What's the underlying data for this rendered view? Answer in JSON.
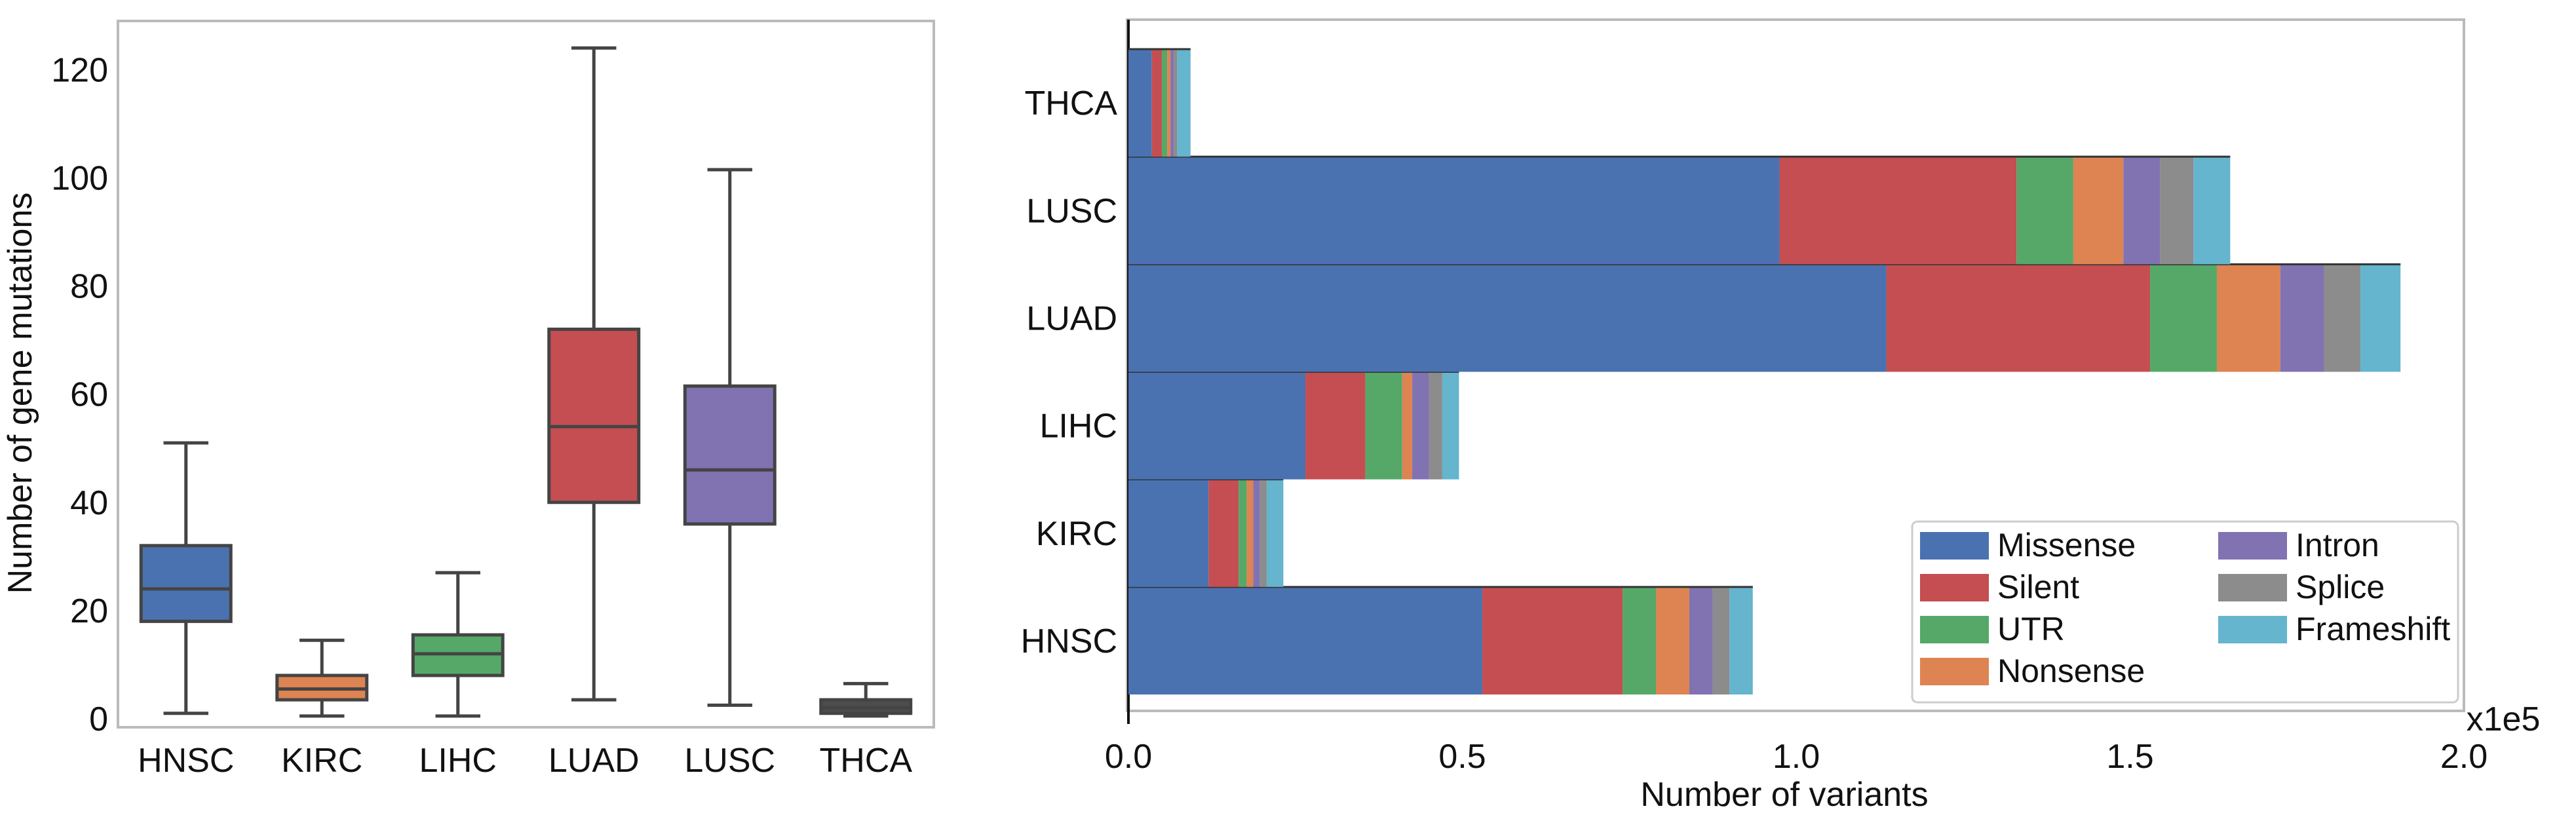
{
  "colors": {
    "HNSC": "#4a72b0",
    "KIRC": "#dd8452",
    "LIHC": "#55a868",
    "LUAD": "#c44e52",
    "LUSC": "#8172b2",
    "THCA": "#4d4d4d",
    "whisker": "#444444",
    "frame": "#bbbbbb",
    "grid": "#cccccc"
  },
  "chart_data": [
    {
      "type": "box",
      "title": "",
      "xlabel": "",
      "ylabel": "Number of gene mutations",
      "ylim": [
        0,
        125
      ],
      "yticks": [
        0,
        20,
        40,
        60,
        80,
        100,
        120
      ],
      "categories": [
        "HNSC",
        "KIRC",
        "LIHC",
        "LUAD",
        "LUSC",
        "THCA"
      ],
      "boxes": [
        {
          "name": "HNSC",
          "min": 1,
          "q1": 18,
          "median": 24,
          "q3": 32,
          "max": 51
        },
        {
          "name": "KIRC",
          "min": 0.5,
          "q1": 3.5,
          "median": 5.5,
          "q3": 8,
          "max": 14.5
        },
        {
          "name": "LIHC",
          "min": 0.5,
          "q1": 8,
          "median": 12,
          "q3": 15.5,
          "max": 27
        },
        {
          "name": "LUAD",
          "min": 3.5,
          "q1": 40,
          "median": 54,
          "q3": 72,
          "max": 124
        },
        {
          "name": "LUSC",
          "min": 2.5,
          "q1": 36,
          "median": 46,
          "q3": 61.5,
          "max": 101.5
        },
        {
          "name": "THCA",
          "min": 0.5,
          "q1": 1,
          "median": 2,
          "q3": 3.5,
          "max": 6.5
        }
      ]
    },
    {
      "type": "stacked-bar-horizontal",
      "title": "",
      "xlabel": "Number of variants",
      "ylabel": "",
      "scale_label": "x1e5",
      "xlim": [
        0,
        2.0
      ],
      "xticks": [
        0,
        0.5,
        1.0,
        1.5,
        2.0
      ],
      "xtick_labels": [
        "0.0",
        "0.5",
        "1.0",
        "1.5",
        "2.0"
      ],
      "categories": [
        "HNSC",
        "KIRC",
        "LIHC",
        "LUAD",
        "LUSC",
        "THCA"
      ],
      "series": [
        {
          "name": "Missense",
          "color": "#4a72b0",
          "values": [
            0.53,
            0.12,
            0.265,
            1.135,
            0.975,
            0.035
          ]
        },
        {
          "name": "Silent",
          "color": "#c44e52",
          "values": [
            0.21,
            0.045,
            0.09,
            0.395,
            0.355,
            0.015
          ]
        },
        {
          "name": "UTR",
          "color": "#55a868",
          "values": [
            0.05,
            0.012,
            0.055,
            0.1,
            0.085,
            0.008
          ]
        },
        {
          "name": "Nonsense",
          "color": "#dd8452",
          "values": [
            0.05,
            0.01,
            0.015,
            0.095,
            0.075,
            0.005
          ]
        },
        {
          "name": "Intron",
          "color": "#8172b2",
          "values": [
            0.035,
            0.01,
            0.025,
            0.065,
            0.055,
            0.005
          ]
        },
        {
          "name": "Splice",
          "color": "#8c8c8c",
          "values": [
            0.025,
            0.01,
            0.02,
            0.055,
            0.05,
            0.005
          ]
        },
        {
          "name": "Frameshift",
          "color": "#64b5cd",
          "values": [
            0.035,
            0.025,
            0.025,
            0.06,
            0.055,
            0.02
          ]
        }
      ],
      "legend_position": "bottom-right"
    }
  ]
}
